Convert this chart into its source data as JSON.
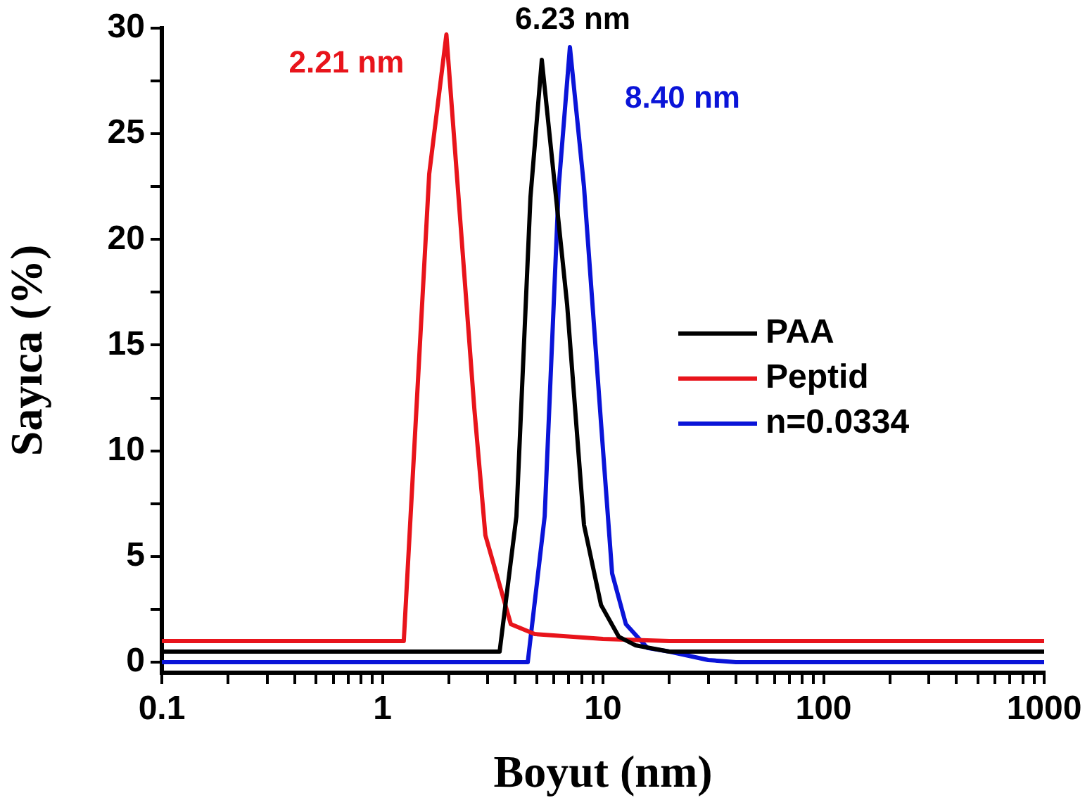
{
  "chart_data": {
    "type": "line",
    "xlabel": "Boyut (nm)",
    "ylabel": "Sayıca (%)",
    "log": "x",
    "xlim": [
      0.1,
      1000
    ],
    "ylim": [
      -0.5,
      30
    ],
    "xticks": [
      0.1,
      {
        "value": 0.2,
        "label": null
      },
      {
        "value": 0.3,
        "label": null
      },
      {
        "value": 0.4,
        "label": null
      },
      {
        "value": 0.5,
        "label": null
      },
      {
        "value": 0.6,
        "label": null
      },
      {
        "value": 0.7,
        "label": null
      },
      {
        "value": 0.8,
        "label": null
      },
      {
        "value": 0.9,
        "label": null
      },
      1,
      {
        "value": 2,
        "label": null
      },
      {
        "value": 3,
        "label": null
      },
      {
        "value": 4,
        "label": null
      },
      {
        "value": 5,
        "label": null
      },
      {
        "value": 6,
        "label": null
      },
      {
        "value": 7,
        "label": null
      },
      {
        "value": 8,
        "label": null
      },
      {
        "value": 9,
        "label": null
      },
      10,
      {
        "value": 20,
        "label": null
      },
      {
        "value": 30,
        "label": null
      },
      {
        "value": 40,
        "label": null
      },
      {
        "value": 50,
        "label": null
      },
      {
        "value": 60,
        "label": null
      },
      {
        "value": 70,
        "label": null
      },
      {
        "value": 80,
        "label": null
      },
      {
        "value": 90,
        "label": null
      },
      100,
      {
        "value": 200,
        "label": null
      },
      {
        "value": 300,
        "label": null
      },
      {
        "value": 400,
        "label": null
      },
      {
        "value": 500,
        "label": null
      },
      {
        "value": 600,
        "label": null
      },
      {
        "value": 700,
        "label": null
      },
      {
        "value": 800,
        "label": null
      },
      {
        "value": 900,
        "label": null
      },
      1000
    ],
    "yticks": [
      0,
      {
        "value": 2.5,
        "label": null
      },
      5,
      {
        "value": 7.5,
        "label": null
      },
      10,
      {
        "value": 12.5,
        "label": null
      },
      15,
      {
        "value": 17.5,
        "label": null
      },
      20,
      {
        "value": 22.5,
        "label": null
      },
      25,
      {
        "value": 27.5,
        "label": null
      },
      30
    ],
    "grid": false,
    "legend": "right",
    "marker": "none",
    "line_style": "solid",
    "series": [
      {
        "name": "PAA",
        "color": "#000000",
        "x": [
          0.1,
          3.4,
          4.05,
          4.69,
          5.28,
          6.88,
          8.2,
          9.8,
          11.8,
          14,
          20,
          1000
        ],
        "values": [
          0.5,
          0.5,
          6.9,
          22,
          28.5,
          16.9,
          6.5,
          2.7,
          1.2,
          0.8,
          0.5,
          0.5
        ]
      },
      {
        "name": "Peptid",
        "color": "#e8141b",
        "x": [
          0.1,
          1.25,
          1.63,
          1.95,
          2.61,
          2.93,
          3.82,
          4.9,
          10,
          20,
          1000
        ],
        "values": [
          1,
          1,
          23.1,
          29.7,
          12,
          6,
          1.8,
          1.33,
          1.1,
          1,
          1
        ]
      },
      {
        "name": "n=0.0334",
        "color": "#0a14d8",
        "x": [
          0.1,
          4.56,
          5.44,
          6.3,
          7.08,
          8.2,
          9.8,
          11,
          12.7,
          15.9,
          20,
          30,
          40,
          1000
        ],
        "values": [
          0,
          0,
          6.9,
          22.5,
          29.1,
          22.5,
          11.3,
          4.2,
          1.8,
          0.67,
          0.5,
          0.1,
          0,
          0
        ]
      }
    ],
    "annotations": [
      "6.23 nm",
      "2.21 nm",
      "8.40 nm"
    ]
  }
}
